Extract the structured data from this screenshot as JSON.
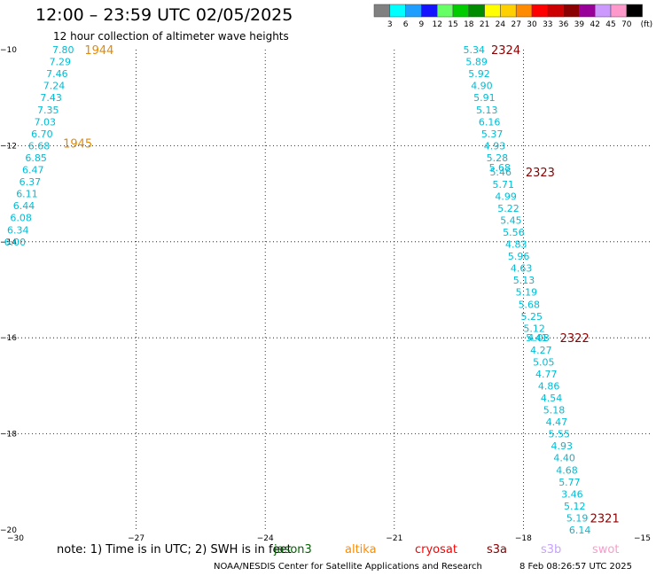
{
  "header": {
    "title": "12:00 – 23:59 UTC 02/05/2025",
    "subtitle": "12 hour collection of altimeter wave heights"
  },
  "colorbar": {
    "unit": "(ft)",
    "labels": [
      "3",
      "6",
      "9",
      "12",
      "15",
      "18",
      "21",
      "24",
      "27",
      "30",
      "33",
      "36",
      "39",
      "42",
      "45",
      "70"
    ],
    "colors": [
      "#808080",
      "#00ffff",
      "#1e9fff",
      "#1414ff",
      "#66ff66",
      "#00cc00",
      "#008c00",
      "#ffff00",
      "#ffd000",
      "#ff8c00",
      "#ff0000",
      "#cc0000",
      "#8b0000",
      "#990099",
      "#cc99ff",
      "#ff99cc",
      "#000000"
    ]
  },
  "chart_data": {
    "type": "scatter",
    "xlim": [
      -30,
      -15
    ],
    "ylim": [
      -20,
      -10
    ],
    "x_ticks": [
      -30,
      -27,
      -24,
      -21,
      -18,
      -15
    ],
    "y_ticks": [
      -10,
      -12,
      -14,
      -16,
      -18,
      -20
    ],
    "grid": true,
    "value_color": "#00bcd4",
    "series": [
      {
        "label": "1944",
        "label_color": "#e68a00",
        "label_lon": -28.2,
        "label_lat": -10.0,
        "points": [
          {
            "lon": -28.95,
            "lat": -10.0,
            "value": "7.80"
          },
          {
            "lon": -29.02,
            "lat": -10.25,
            "value": "7.29"
          },
          {
            "lon": -29.09,
            "lat": -10.5,
            "value": "7.46"
          },
          {
            "lon": -29.16,
            "lat": -10.75,
            "value": "7.24"
          },
          {
            "lon": -29.23,
            "lat": -11.0,
            "value": "7.43"
          },
          {
            "lon": -29.3,
            "lat": -11.25,
            "value": "7.35"
          },
          {
            "lon": -29.37,
            "lat": -11.5,
            "value": "7.03"
          },
          {
            "lon": -29.44,
            "lat": -11.75,
            "value": "6.70"
          }
        ]
      },
      {
        "label": "1945",
        "label_color": "#e68a00",
        "label_lon": -28.7,
        "label_lat": -11.95,
        "points": [
          {
            "lon": -29.51,
            "lat": -12.0,
            "value": "6.68"
          },
          {
            "lon": -29.58,
            "lat": -12.25,
            "value": "6.85"
          },
          {
            "lon": -29.65,
            "lat": -12.5,
            "value": "6.47"
          },
          {
            "lon": -29.72,
            "lat": -12.75,
            "value": "6.37"
          },
          {
            "lon": -29.79,
            "lat": -13.0,
            "value": "6.11"
          },
          {
            "lon": -29.86,
            "lat": -13.25,
            "value": "6.44"
          },
          {
            "lon": -29.93,
            "lat": -13.5,
            "value": "6.08"
          },
          {
            "lon": -30.0,
            "lat": -13.75,
            "value": "6.34"
          },
          {
            "lon": -30.07,
            "lat": -14.0,
            "value": "6.00"
          }
        ]
      },
      {
        "label": "2324",
        "label_color": "#8b0000",
        "label_lon": -18.75,
        "label_lat": -10.0,
        "points": [
          {
            "lon": -19.4,
            "lat": -10.0,
            "value": "5.34"
          },
          {
            "lon": -19.34,
            "lat": -10.25,
            "value": "5.89"
          },
          {
            "lon": -19.28,
            "lat": -10.5,
            "value": "5.92"
          },
          {
            "lon": -19.22,
            "lat": -10.75,
            "value": "4.90"
          },
          {
            "lon": -19.16,
            "lat": -11.0,
            "value": "5.91"
          },
          {
            "lon": -19.1,
            "lat": -11.25,
            "value": "5.13"
          },
          {
            "lon": -19.04,
            "lat": -11.5,
            "value": "6.16"
          },
          {
            "lon": -18.98,
            "lat": -11.75,
            "value": "5.37"
          },
          {
            "lon": -18.92,
            "lat": -12.0,
            "value": "4.93"
          },
          {
            "lon": -18.86,
            "lat": -12.25,
            "value": "5.28"
          }
        ]
      },
      {
        "label": "2323",
        "label_color": "#8b0000",
        "label_lon": -17.95,
        "label_lat": -12.55,
        "points": [
          {
            "lon": -18.8,
            "lat": -12.45,
            "value": "5.68"
          },
          {
            "lon": -18.78,
            "lat": -12.55,
            "value": "5.46"
          },
          {
            "lon": -18.72,
            "lat": -12.8,
            "value": "5.71"
          },
          {
            "lon": -18.66,
            "lat": -13.05,
            "value": "4.99"
          },
          {
            "lon": -18.6,
            "lat": -13.3,
            "value": "5.22"
          },
          {
            "lon": -18.54,
            "lat": -13.55,
            "value": "5.45"
          },
          {
            "lon": -18.48,
            "lat": -13.8,
            "value": "5.56"
          },
          {
            "lon": -18.42,
            "lat": -14.05,
            "value": "4.83"
          },
          {
            "lon": -18.36,
            "lat": -14.3,
            "value": "5.96"
          },
          {
            "lon": -18.3,
            "lat": -14.55,
            "value": "4.63"
          },
          {
            "lon": -18.24,
            "lat": -14.8,
            "value": "5.13"
          },
          {
            "lon": -18.18,
            "lat": -15.05,
            "value": "5.19"
          },
          {
            "lon": -18.12,
            "lat": -15.3,
            "value": "5.68"
          },
          {
            "lon": -18.06,
            "lat": -15.55,
            "value": "5.25"
          },
          {
            "lon": -18.0,
            "lat": -15.8,
            "value": "5.12"
          },
          {
            "lon": -17.94,
            "lat": -16.0,
            "value": "5.41"
          }
        ]
      },
      {
        "label": "2322",
        "label_color": "#8b0000",
        "label_lon": -17.15,
        "label_lat": -16.0,
        "points": [
          {
            "lon": -17.9,
            "lat": -16.0,
            "value": "4.08"
          },
          {
            "lon": -17.84,
            "lat": -16.25,
            "value": "4.27"
          },
          {
            "lon": -17.78,
            "lat": -16.5,
            "value": "5.05"
          },
          {
            "lon": -17.72,
            "lat": -16.75,
            "value": "4.77"
          },
          {
            "lon": -17.66,
            "lat": -17.0,
            "value": "4.86"
          },
          {
            "lon": -17.6,
            "lat": -17.25,
            "value": "4.54"
          },
          {
            "lon": -17.54,
            "lat": -17.5,
            "value": "5.18"
          },
          {
            "lon": -17.48,
            "lat": -17.75,
            "value": "4.47"
          },
          {
            "lon": -17.42,
            "lat": -18.0,
            "value": "5.55"
          },
          {
            "lon": -17.36,
            "lat": -18.25,
            "value": "4.93"
          },
          {
            "lon": -17.3,
            "lat": -18.5,
            "value": "4.40"
          },
          {
            "lon": -17.24,
            "lat": -18.75,
            "value": "4.68"
          },
          {
            "lon": -17.18,
            "lat": -19.0,
            "value": "5.77"
          },
          {
            "lon": -17.12,
            "lat": -19.25,
            "value": "3.46"
          },
          {
            "lon": -17.06,
            "lat": -19.5,
            "value": "5.12"
          },
          {
            "lon": -17.0,
            "lat": -19.75,
            "value": "5.19"
          }
        ]
      },
      {
        "label": "2321",
        "label_color": "#8b0000",
        "label_lon": -16.45,
        "label_lat": -19.75,
        "points": [
          {
            "lon": -16.94,
            "lat": -20.0,
            "value": "6.14"
          }
        ]
      }
    ]
  },
  "footer": {
    "note": "note: 1) Time is in UTC; 2) SWH is in feet",
    "satellites": [
      {
        "name": "jason3",
        "color": "#006400"
      },
      {
        "name": "altika",
        "color": "#ff8c00"
      },
      {
        "name": "cryosat",
        "color": "#ff0000"
      },
      {
        "name": "s3a",
        "color": "#8b0000"
      },
      {
        "name": "s3b",
        "color": "#c8a2ff"
      },
      {
        "name": "swot",
        "color": "#ff99cc"
      }
    ],
    "credit": "NOAA/NESDIS Center for Satellite Applications and Research",
    "timestamp": "8 Feb 08:26:57 UTC 2025"
  }
}
